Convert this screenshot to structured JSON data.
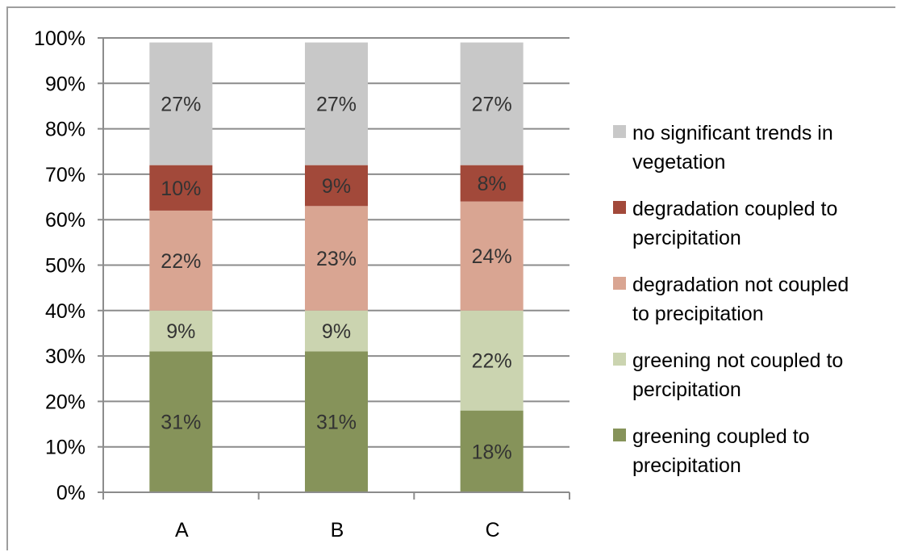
{
  "chart_data": {
    "type": "bar",
    "stacked": true,
    "percent": true,
    "title": "",
    "xlabel": "",
    "ylabel": "",
    "categories": [
      "A",
      "B",
      "C"
    ],
    "ylim": [
      0,
      100
    ],
    "yticks": [
      "0%",
      "10%",
      "20%",
      "30%",
      "40%",
      "50%",
      "60%",
      "70%",
      "80%",
      "90%",
      "100%"
    ],
    "grid": true,
    "legend_position": "right",
    "series": [
      {
        "name": "greening coupled to precipitation",
        "color": "#86935a",
        "values": [
          31,
          31,
          18
        ],
        "labels": [
          "31%",
          "31%",
          "18%"
        ]
      },
      {
        "name": "greening not coupled to percipitation",
        "color": "#cbd4b0",
        "values": [
          9,
          9,
          22
        ],
        "labels": [
          "9%",
          "9%",
          "22%"
        ]
      },
      {
        "name": "degradation not coupled to precipitation",
        "color": "#d9a592",
        "values": [
          22,
          23,
          24
        ],
        "labels": [
          "22%",
          "23%",
          "24%"
        ]
      },
      {
        "name": "degradation coupled to percipitation",
        "color": "#a2493a",
        "values": [
          10,
          9,
          8
        ],
        "labels": [
          "10%",
          "9%",
          "8%"
        ]
      },
      {
        "name": "no significant trends in vegetation",
        "color": "#c8c8c8",
        "values": [
          27,
          27,
          27
        ],
        "labels": [
          "27%",
          "27%",
          "27%"
        ]
      }
    ],
    "legend_lines": [
      [
        "no significant trends in",
        "vegetation"
      ],
      [
        "degradation coupled to",
        "percipitation"
      ],
      [
        "degradation not coupled",
        "to precipitation"
      ],
      [
        "greening not coupled to",
        "percipitation"
      ],
      [
        "greening coupled to",
        "precipitation"
      ]
    ],
    "legend_order": [
      4,
      3,
      2,
      1,
      0
    ]
  }
}
